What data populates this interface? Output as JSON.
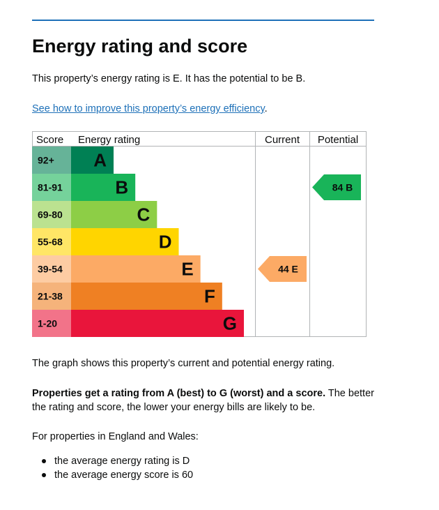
{
  "title": "Energy rating and score",
  "intro": "This property’s energy rating is E. It has the potential to be B.",
  "improve_link": "See how to improve this property’s energy efficiency",
  "improve_link_suffix": ".",
  "chart_data": {
    "type": "table",
    "headers": {
      "score": "Score",
      "rating": "Energy rating",
      "current": "Current",
      "potential": "Potential"
    },
    "bands": [
      {
        "letter": "A",
        "score_range": "92+",
        "color": "#008054"
      },
      {
        "letter": "B",
        "score_range": "81-91",
        "color": "#19b459"
      },
      {
        "letter": "C",
        "score_range": "69-80",
        "color": "#8dce46"
      },
      {
        "letter": "D",
        "score_range": "55-68",
        "color": "#ffd500"
      },
      {
        "letter": "E",
        "score_range": "39-54",
        "color": "#fcaa65"
      },
      {
        "letter": "F",
        "score_range": "21-38",
        "color": "#ef8023"
      },
      {
        "letter": "G",
        "score_range": "1-20",
        "color": "#e9153b"
      }
    ],
    "current": {
      "score": 44,
      "letter": "E",
      "label": "44 E"
    },
    "potential": {
      "score": 84,
      "letter": "B",
      "label": "84 B"
    }
  },
  "graph_caption": "The graph shows this property’s current and potential energy rating.",
  "ratings_bold": "Properties get a rating from A (best) to G (worst) and a score.",
  "ratings_rest": " The better the rating and score, the lower your energy bills are likely to be.",
  "average_intro": "For properties in England and Wales:",
  "averages": [
    "the average energy rating is D",
    "the average energy score is 60"
  ]
}
